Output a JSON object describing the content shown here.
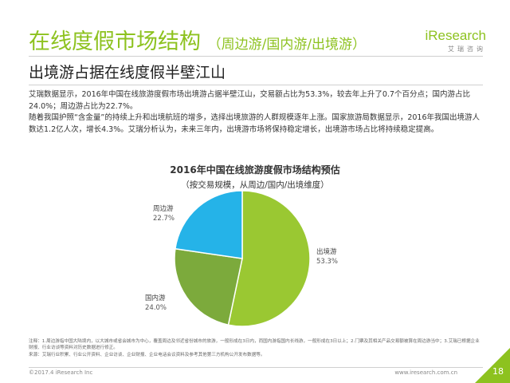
{
  "header": {
    "title": "在线度假市场结构",
    "title_sub": "（周边游/国内游/出境游）",
    "subtitle": "出境游占据在线度假半壁江山",
    "logo_brand": "iResearch",
    "logo_cn": "艾瑞咨询"
  },
  "body": {
    "paragraph_1": "艾瑞数据显示，2016年中国在线旅游度假市场出境游占据半壁江山，交易额占比为53.3%，较去年上升了0.7个百分点；国内游占比24.0%；周边游占比为22.7%。",
    "paragraph_2": "随着我国护照“含金量”的持续上升和出境航班的增多，选择出境旅游的人群规模逐年上涨。国家旅游局数据显示，2016年我国出境游人数达1.2亿人次，增长4.3%。艾瑞分析认为，未来三年内，出境游市场将保持稳定增长，出境游市场占比将持续稳定提高。"
  },
  "chart_data": {
    "type": "pie",
    "title": "2016年中国在线旅游度假市场结构预估",
    "subtitle": "（按交易规模，从周边/国内/出境维度）",
    "slices": [
      {
        "name": "出境游",
        "value": 53.3,
        "label": "53.3%",
        "color": "#9ac832"
      },
      {
        "name": "国内游",
        "value": 24.0,
        "label": "24.0%",
        "color": "#7caa3c"
      },
      {
        "name": "周边游",
        "value": 22.7,
        "label": "22.7%",
        "color": "#25b3e8"
      }
    ]
  },
  "notes": {
    "line_1": "注释：1.周边游指中国大陆境内，以大城市或省会城市为中心，覆盖周边及邻近省份城市的旅游，一般形成在3日内，而国内游指国内长线游，一般形成在3日以上；2.门票及其相关产品交易额被算在周边游当中；3.艾瑞已根据企业财报、行业访谈等资料对历史数据进行修正。",
    "line_2": "来源：艾瑞行业积累、行业公开资料、企业访谈、企业财报、企业电话会议资料及参考其他第三方机构公开发布数据等。"
  },
  "footer": {
    "copyright": "©2017.4 iResearch Inc",
    "url": "www.iresearch.com.cn",
    "page_number": "18"
  }
}
